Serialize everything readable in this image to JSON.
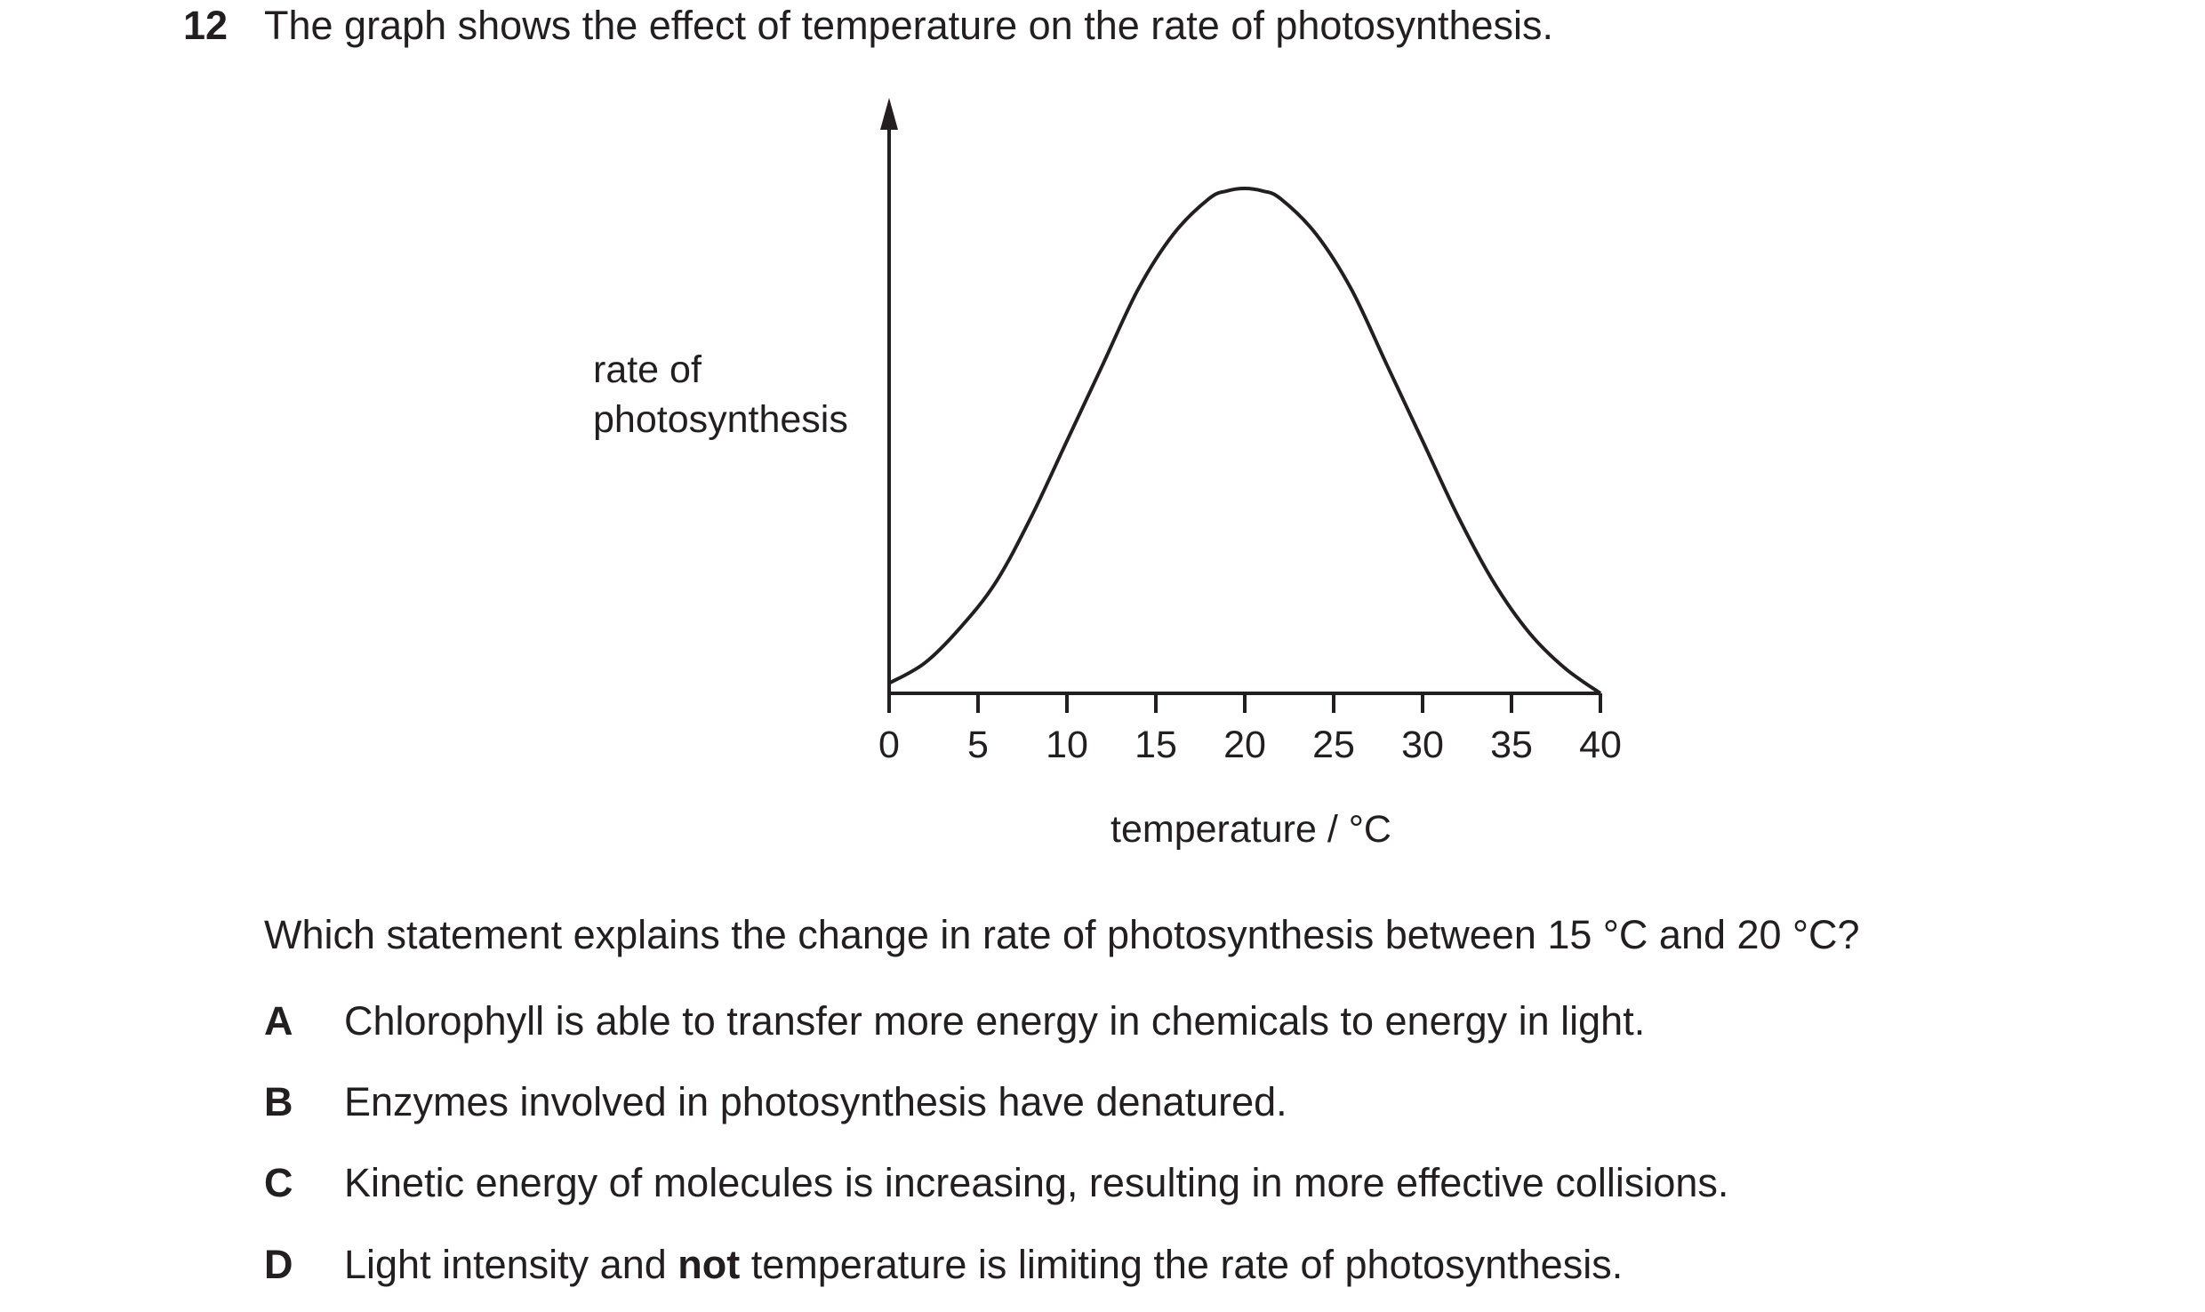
{
  "question": {
    "number": "12",
    "text": "The graph shows the effect of temperature on the rate of photosynthesis.",
    "stem": "Which statement explains the change in rate of photosynthesis between 15 °C and 20 °C?"
  },
  "chart_data": {
    "type": "line",
    "title": "",
    "ylabel_lines": [
      "rate of",
      "photosynthesis"
    ],
    "xlabel": "temperature / °C",
    "x_ticks": [
      "0",
      "5",
      "10",
      "15",
      "20",
      "25",
      "30",
      "35",
      "40"
    ],
    "xlim": [
      0,
      40
    ],
    "ylim": [
      0,
      1.15
    ],
    "grid": false,
    "legend": "none",
    "series": [
      {
        "x": [
          0,
          2,
          4,
          6,
          8,
          10,
          12,
          14,
          16,
          18,
          19,
          20,
          21,
          22,
          24,
          26,
          28,
          30,
          32,
          34,
          36,
          38,
          40
        ],
        "y": [
          0.02,
          0.06,
          0.13,
          0.22,
          0.35,
          0.5,
          0.65,
          0.8,
          0.91,
          0.98,
          0.995,
          1.0,
          0.995,
          0.98,
          0.91,
          0.8,
          0.65,
          0.5,
          0.35,
          0.22,
          0.12,
          0.05,
          0.0
        ]
      }
    ]
  },
  "options": [
    {
      "letter": "A",
      "text": "Chlorophyll is able to transfer more energy in chemicals to energy in light."
    },
    {
      "letter": "B",
      "text": "Enzymes involved in photosynthesis have denatured."
    },
    {
      "letter": "C",
      "text": "Kinetic energy of molecules is increasing, resulting in more effective collisions."
    },
    {
      "letter": "D",
      "text_before": "Light intensity and ",
      "text_bold": "not",
      "text_after": " temperature is limiting the rate of photosynthesis."
    }
  ]
}
